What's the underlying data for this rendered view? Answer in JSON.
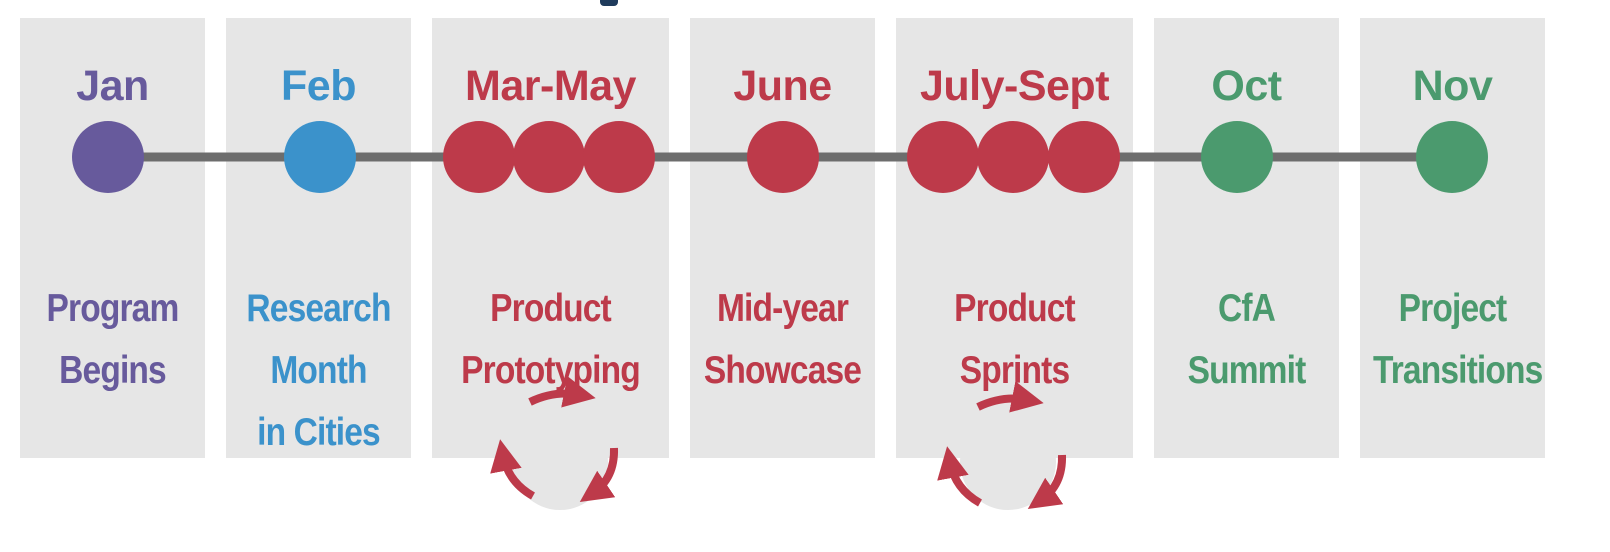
{
  "colors": {
    "purple": "#675a9c",
    "blue": "#3b92cb",
    "red": "#bd3a4a",
    "green": "#4b9a6e",
    "track": "#6d6d6d",
    "panel": "#e6e6e6"
  },
  "stages": [
    {
      "month": "Jan",
      "caption": [
        "Program",
        "Begins"
      ],
      "color": "purple",
      "dots": 1,
      "cycle": false
    },
    {
      "month": "Feb",
      "caption": [
        "Research",
        "Month",
        "in Cities"
      ],
      "color": "blue",
      "dots": 1,
      "cycle": false
    },
    {
      "month": "Mar-May",
      "caption": [
        "Product",
        "Prototyping"
      ],
      "color": "red",
      "dots": 3,
      "cycle": true
    },
    {
      "month": "June",
      "caption": [
        "Mid-year",
        "Showcase"
      ],
      "color": "red",
      "dots": 1,
      "cycle": false
    },
    {
      "month": "July-Sept",
      "caption": [
        "Product",
        "Sprints"
      ],
      "color": "red",
      "dots": 3,
      "cycle": true
    },
    {
      "month": "Oct",
      "caption": [
        "CfA",
        "Summit"
      ],
      "color": "green",
      "dots": 1,
      "cycle": false
    },
    {
      "month": "Nov",
      "caption": [
        "Project",
        "Transitions"
      ],
      "color": "green",
      "dots": 1,
      "cycle": false
    }
  ]
}
